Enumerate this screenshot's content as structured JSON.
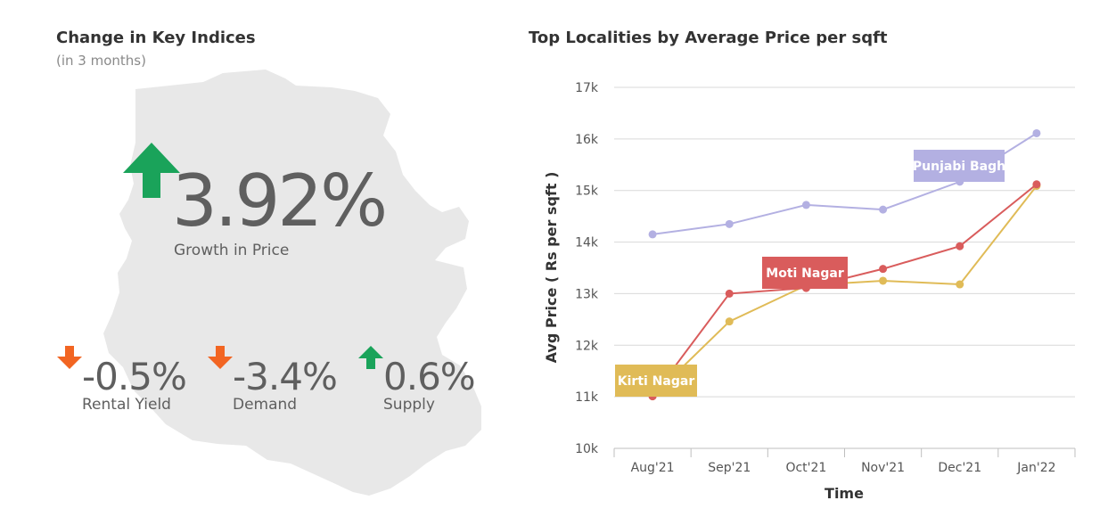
{
  "indices": {
    "title": "Change in Key Indices",
    "subtitle": "(in 3 months)",
    "main": {
      "value": "3.92%",
      "label": "Growth in Price",
      "direction": "up"
    },
    "items": [
      {
        "value": "-0.5%",
        "label": "Rental Yield",
        "direction": "down"
      },
      {
        "value": "-3.4%",
        "label": "Demand",
        "direction": "down"
      },
      {
        "value": "0.6%",
        "label": "Supply",
        "direction": "up"
      }
    ],
    "colors": {
      "up": "#1aa35a",
      "down": "#f26522",
      "map": "#e8e8e8"
    }
  },
  "chart_data": {
    "type": "line",
    "title": "Top Localities by Average Price per sqft",
    "xlabel": "Time",
    "ylabel": "Avg Price ( Rs per sqft )",
    "categories": [
      "Aug'21",
      "Sep'21",
      "Oct'21",
      "Nov'21",
      "Dec'21",
      "Jan'22"
    ],
    "ylim": [
      10000,
      17000
    ],
    "yticks": [
      10000,
      11000,
      12000,
      13000,
      14000,
      15000,
      16000,
      17000
    ],
    "ytick_labels": [
      "10k",
      "11k",
      "12k",
      "13k",
      "14k",
      "15k",
      "16k",
      "17k"
    ],
    "grid": true,
    "series": [
      {
        "name": "Punjabi Bagh",
        "color": "#b3b0e2",
        "values": [
          14150,
          14350,
          14720,
          14630,
          15170,
          16110
        ]
      },
      {
        "name": "Moti Nagar",
        "color": "#d95c5c",
        "values": [
          11010,
          13000,
          13110,
          13480,
          13920,
          15120
        ]
      },
      {
        "name": "Kirti Nagar",
        "color": "#e0bb57",
        "values": [
          11010,
          12460,
          13160,
          13250,
          13180,
          15090
        ]
      }
    ]
  }
}
